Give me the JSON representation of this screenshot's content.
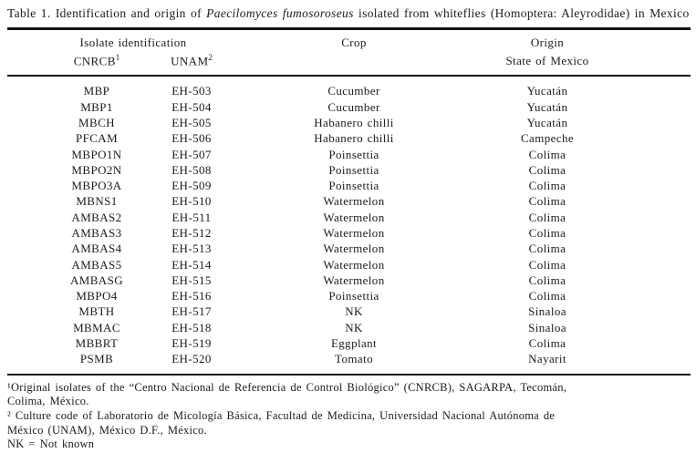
{
  "caption": {
    "prefix": "Table 1. Identification and origin of ",
    "species_italic": "Paecilomyces fumosoroseus",
    "suffix": " isolated from whiteflies (Homoptera: Aleyrodidae) in Mexico"
  },
  "table": {
    "header": {
      "isolate_group": "Isolate identification",
      "cnrcb_label": "CNRCB",
      "cnrcb_sup": "1",
      "unam_label": "UNAM",
      "unam_sup": "2",
      "crop_label": "Crop",
      "origin_label": "Origin",
      "origin_subline": "State of Mexico"
    },
    "rows": [
      {
        "cnrcb": "MBP",
        "unam": "EH-503",
        "crop": "Cucumber",
        "origin": "Yucatán"
      },
      {
        "cnrcb": "MBP1",
        "unam": "EH-504",
        "crop": "Cucumber",
        "origin": "Yucatán"
      },
      {
        "cnrcb": "MBCH",
        "unam": "EH-505",
        "crop": "Habanero chilli",
        "origin": "Yucatán"
      },
      {
        "cnrcb": "PFCAM",
        "unam": "EH-506",
        "crop": "Habanero chilli",
        "origin": "Campeche"
      },
      {
        "cnrcb": "MBPO1N",
        "unam": "EH-507",
        "crop": "Poinsettia",
        "origin": "Colima"
      },
      {
        "cnrcb": "MBPO2N",
        "unam": "EH-508",
        "crop": "Poinsettia",
        "origin": "Colima"
      },
      {
        "cnrcb": "MBPO3A",
        "unam": "EH-509",
        "crop": "Poinsettia",
        "origin": "Colima"
      },
      {
        "cnrcb": "MBNS1",
        "unam": "EH-510",
        "crop": "Watermelon",
        "origin": "Colima"
      },
      {
        "cnrcb": "AMBAS2",
        "unam": "EH-511",
        "crop": "Watermelon",
        "origin": "Colima"
      },
      {
        "cnrcb": "AMBAS3",
        "unam": "EH-512",
        "crop": "Watermelon",
        "origin": "Colima"
      },
      {
        "cnrcb": "AMBAS4",
        "unam": "EH-513",
        "crop": "Watermelon",
        "origin": "Colima"
      },
      {
        "cnrcb": "AMBAS5",
        "unam": "EH-514",
        "crop": "Watermelon",
        "origin": "Colima"
      },
      {
        "cnrcb": "AMBASG",
        "unam": "EH-515",
        "crop": "Watermelon",
        "origin": "Colima"
      },
      {
        "cnrcb": "MBPO4",
        "unam": "EH-516",
        "crop": "Poinsettia",
        "origin": "Colima"
      },
      {
        "cnrcb": "MBTH",
        "unam": "EH-517",
        "crop": "NK",
        "origin": "Sinaloa"
      },
      {
        "cnrcb": "MBMAC",
        "unam": "EH-518",
        "crop": "NK",
        "origin": "Sinaloa"
      },
      {
        "cnrcb": "MBBRT",
        "unam": "EH-519",
        "crop": "Eggplant",
        "origin": "Colima"
      },
      {
        "cnrcb": "PSMB",
        "unam": "EH-520",
        "crop": "Tomato",
        "origin": "Nayarit"
      }
    ]
  },
  "footnotes": {
    "lines": [
      "¹Original isolates of the “Centro Nacional de Referencia de Control Biológico” (CNRCB), SAGARPA, Tecomán,",
      "Colima, México.",
      "² Culture code of Laboratorio de Micología Básica, Facultad de Medicina, Universidad Nacional Autónoma de",
      "México (UNAM), México D.F., México.",
      "NK = Not known"
    ]
  }
}
